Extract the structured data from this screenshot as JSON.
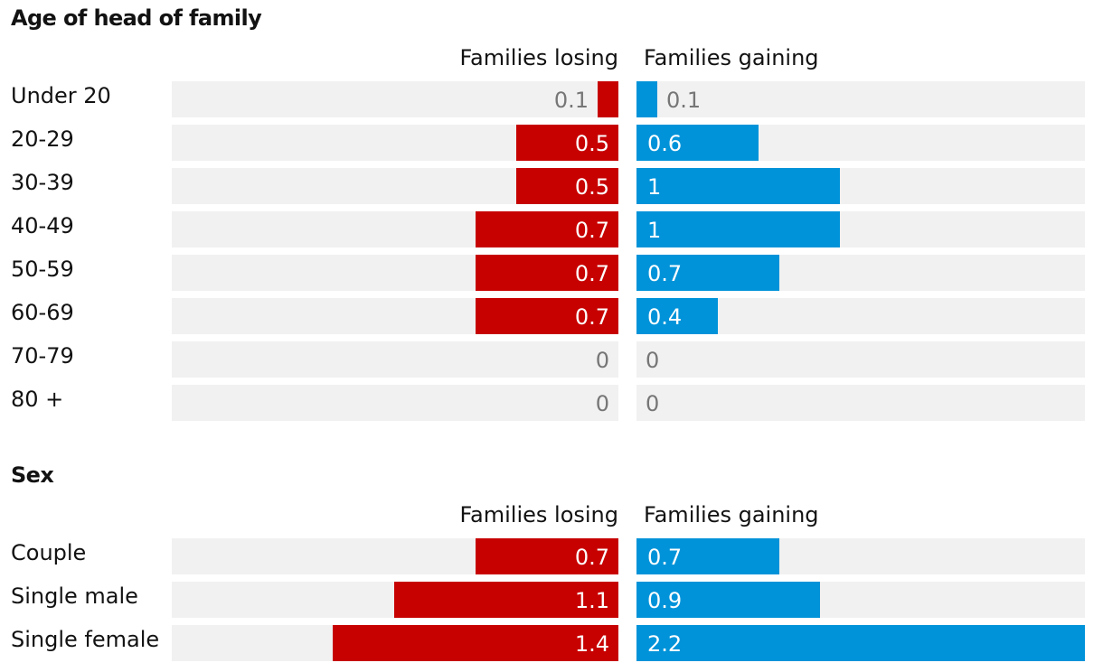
{
  "chart_data": [
    {
      "type": "bar",
      "title": "Age of head of family",
      "orientation": "horizontal",
      "categories": [
        "Under 20",
        "20-29",
        "30-39",
        "40-49",
        "50-59",
        "60-69",
        "70-79",
        "80 +"
      ],
      "series": [
        {
          "name": "Families losing",
          "color": "#c70000",
          "values": [
            0.1,
            0.5,
            0.5,
            0.7,
            0.7,
            0.7,
            0,
            0
          ],
          "labels": [
            "0.1",
            "0.5",
            "0.5",
            "0.7",
            "0.7",
            "0.7",
            "0",
            "0"
          ]
        },
        {
          "name": "Families gaining",
          "color": "#0093d9",
          "values": [
            0.1,
            0.6,
            1,
            1,
            0.7,
            0.4,
            0,
            0
          ],
          "labels": [
            "0.1",
            "0.6",
            "1",
            "1",
            "0.7",
            "0.4",
            "0",
            "0"
          ]
        }
      ],
      "xlim": [
        0,
        2.2
      ]
    },
    {
      "type": "bar",
      "title": "Sex",
      "orientation": "horizontal",
      "categories": [
        "Couple",
        "Single male",
        "Single female"
      ],
      "series": [
        {
          "name": "Families losing",
          "color": "#c70000",
          "values": [
            0.7,
            1.1,
            1.4
          ],
          "labels": [
            "0.7",
            "1.1",
            "1.4"
          ]
        },
        {
          "name": "Families gaining",
          "color": "#0093d9",
          "values": [
            0.7,
            0.9,
            2.2
          ],
          "labels": [
            "0.7",
            "0.9",
            "2.2"
          ]
        }
      ],
      "xlim": [
        0,
        2.2
      ]
    }
  ]
}
